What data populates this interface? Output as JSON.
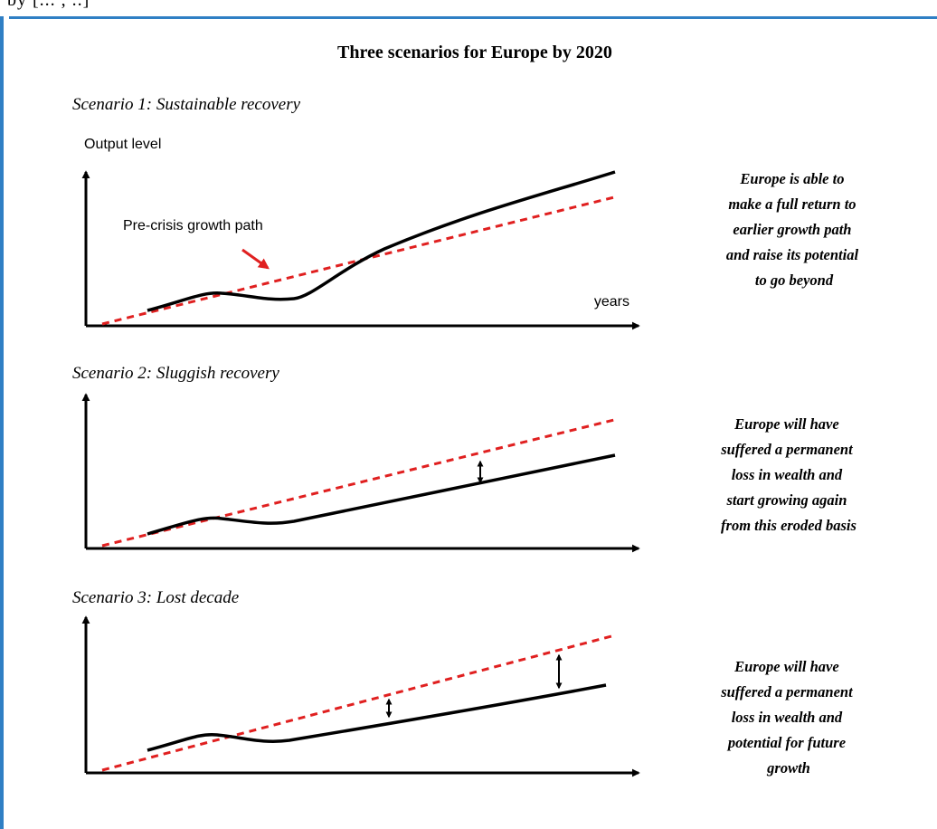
{
  "header_fragment": "by [... , ..]",
  "title": "Three scenarios for Europe by 2020",
  "panels": [
    {
      "heading": "Scenario 1: Sustainable recovery",
      "y_label": "Output level",
      "x_label": "years",
      "callout": "Pre-crisis growth path",
      "note": [
        "Europe is able to",
        "make a full return to",
        "earlier growth path",
        "and raise its potential",
        "to go beyond"
      ]
    },
    {
      "heading": "Scenario 2: Sluggish recovery",
      "note": [
        "Europe will have",
        "suffered a permanent",
        "loss in wealth and",
        "start growing again",
        "from this eroded basis"
      ]
    },
    {
      "heading": "Scenario 3: Lost decade",
      "note": [
        "Europe will have",
        "suffered a permanent",
        "loss in wealth and",
        "potential for future",
        "growth"
      ]
    }
  ],
  "colors": {
    "trend": "#e02020",
    "actual": "#000000",
    "frame": "#2f7fc4"
  }
}
